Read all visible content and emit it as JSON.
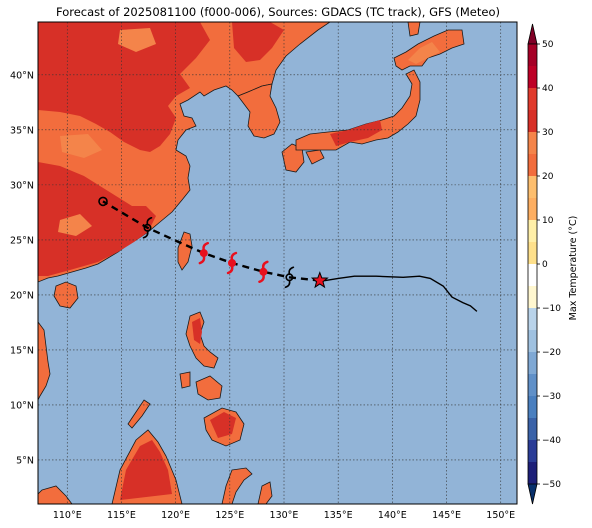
{
  "title": "Forecast of 2025081100 (f000-006), Sources: GDACS (TC track), GFS (Meteo)",
  "map": {
    "lon_ticks": [
      "110°E",
      "115°E",
      "120°E",
      "125°E",
      "130°E",
      "135°E",
      "140°E",
      "145°E",
      "150°E"
    ],
    "lat_ticks": [
      "5°N",
      "10°N",
      "15°N",
      "20°N",
      "25°N",
      "30°N",
      "35°N",
      "40°N"
    ],
    "lon_range": [
      107.3,
      151.5
    ],
    "lat_range": [
      1,
      44.8
    ],
    "ocean_color": "#92b4d7",
    "land_color": "#f26d3d"
  },
  "colorbar": {
    "label": "Max Temperature (°C)",
    "ticks": [
      "50",
      "40",
      "30",
      "20",
      "10",
      "0",
      "−10",
      "−20",
      "−30",
      "−40",
      "−50"
    ],
    "colors": [
      "#800026",
      "#bd0026",
      "#e31a1c",
      "#f26d3d",
      "#fd8d3c",
      "#feb24c",
      "#ffe58f",
      "#fff7d0",
      "#deebf7",
      "#c6dbef",
      "#9ecae1",
      "#6baed6",
      "#3182bd",
      "#2166ac",
      "#08306b"
    ]
  },
  "track": {
    "observed_path": [
      [
        133.3,
        21.3
      ],
      [
        133.8,
        21.3
      ],
      [
        135.0,
        21.5
      ],
      [
        136.5,
        21.7
      ],
      [
        138.5,
        21.7
      ],
      [
        141.0,
        21.6
      ],
      [
        142.5,
        21.7
      ],
      [
        143.5,
        21.5
      ],
      [
        144.7,
        20.8
      ],
      [
        145.5,
        19.8
      ],
      [
        146.5,
        19.3
      ],
      [
        147.2,
        19.0
      ],
      [
        147.8,
        18.5
      ]
    ],
    "forecast_path": [
      [
        133.3,
        21.3
      ],
      [
        130.5,
        21.6
      ],
      [
        128.1,
        22.1
      ],
      [
        125.2,
        22.9
      ],
      [
        122.6,
        23.8
      ],
      [
        120.3,
        24.8
      ],
      [
        117.4,
        26.1
      ],
      [
        113.3,
        28.5
      ]
    ],
    "current_position": [
      133.3,
      21.3
    ],
    "forecast_points": [
      {
        "lon": 130.5,
        "lat": 21.6,
        "kind": "depression",
        "color": "#000000"
      },
      {
        "lon": 128.1,
        "lat": 22.1,
        "kind": "typhoon",
        "color": "#e8101e"
      },
      {
        "lon": 125.2,
        "lat": 22.9,
        "kind": "typhoon",
        "color": "#e8101e"
      },
      {
        "lon": 122.6,
        "lat": 23.8,
        "kind": "typhoon",
        "color": "#e8101e"
      },
      {
        "lon": 117.4,
        "lat": 26.1,
        "kind": "depression",
        "color": "#000000"
      },
      {
        "lon": 113.3,
        "lat": 28.5,
        "kind": "low",
        "color": "#000000"
      }
    ]
  }
}
